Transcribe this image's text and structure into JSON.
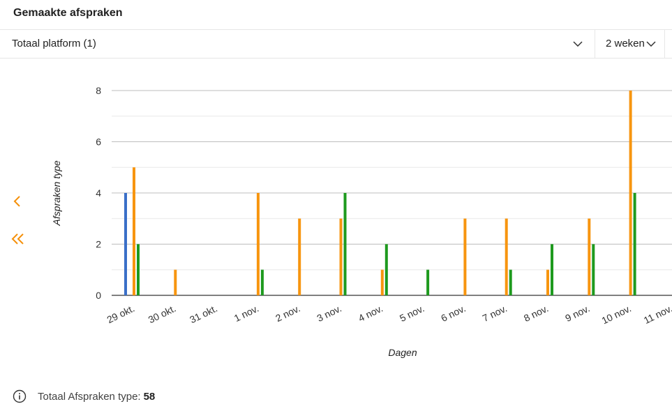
{
  "card": {
    "title": "Gemaakte afspraken"
  },
  "filter": {
    "selected": "Totaal platform (1)",
    "icon": "chevron-down-icon"
  },
  "period": {
    "selected": "2 weken",
    "icon": "chevron-down-icon"
  },
  "nav": {
    "prev_icon": "chevron-left-icon",
    "first_icon": "double-chevron-left-icon",
    "color": "#f5900a"
  },
  "footer": {
    "label": "Totaal Afspraken type:",
    "value": "58",
    "icon": "info-icon"
  },
  "colors": {
    "blue": "#3a6fc8",
    "orange": "#f7950f",
    "green": "#1e9a1e",
    "grid": "#cccccc",
    "axis": "#333333"
  },
  "chart_data": {
    "type": "bar",
    "xlabel": "Dagen",
    "ylabel": "Afspraken type",
    "ylim": [
      0,
      8
    ],
    "yticks": [
      0,
      2,
      4,
      6,
      8
    ],
    "grid": true,
    "categories": [
      "29 okt.",
      "30 okt.",
      "31 okt.",
      "1 nov.",
      "2 nov.",
      "3 nov.",
      "4 nov.",
      "5 nov.",
      "6 nov.",
      "7 nov.",
      "8 nov.",
      "9 nov.",
      "10 nov.",
      "11 nov."
    ],
    "series": [
      {
        "color": "#3a6fc8",
        "values": [
          4,
          0,
          0,
          0,
          0,
          0,
          0,
          0,
          0,
          0,
          0,
          0,
          0,
          0
        ]
      },
      {
        "color": "#f7950f",
        "values": [
          5,
          1,
          0,
          4,
          3,
          3,
          1,
          0,
          3,
          3,
          1,
          3,
          8,
          0
        ]
      },
      {
        "color": "#1e9a1e",
        "values": [
          2,
          0,
          0,
          1,
          0,
          4,
          2,
          1,
          0,
          1,
          2,
          2,
          4,
          0
        ]
      }
    ]
  }
}
